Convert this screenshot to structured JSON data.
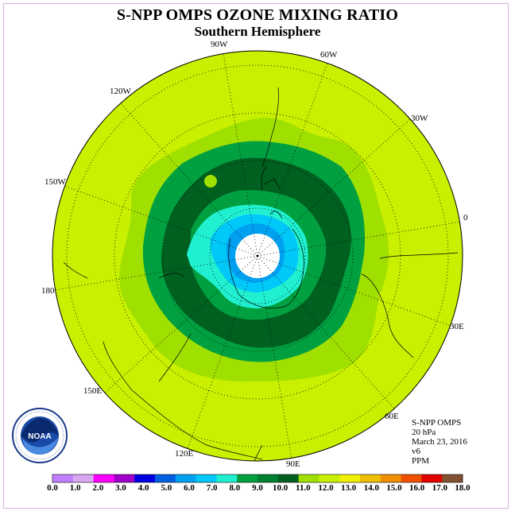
{
  "title": "S-NPP OMPS OZONE MIXING RATIO",
  "subtitle": "Southern Hemisphere",
  "longitude_labels": [
    "90W",
    "60W",
    "30W",
    "0",
    "30E",
    "60E",
    "90E",
    "120E",
    "150E",
    "180",
    "150W",
    "120W"
  ],
  "info": {
    "instrument": "S-NPP OMPS",
    "level": "20 hPa",
    "date": "March 23, 2016",
    "version": "v6",
    "units": "PPM"
  },
  "logo": {
    "text": "NOAA",
    "icon": "noaa-logo-icon",
    "ring_text": "NATIONAL OCEANIC AND ATMOSPHERIC ADMINISTRATION · U.S. DEPARTMENT OF COMMERCE"
  },
  "colorbar": {
    "labels": [
      "0.0",
      "1.0",
      "2.0",
      "3.0",
      "4.0",
      "5.0",
      "6.0",
      "7.0",
      "8.0",
      "9.0",
      "10.0",
      "11.0",
      "12.0",
      "13.0",
      "14.0",
      "15.0",
      "16.0",
      "17.0",
      "18.0"
    ],
    "colors": [
      "#c080ff",
      "#d8a8f0",
      "#ff00ff",
      "#a000c8",
      "#0000e0",
      "#0060e0",
      "#00a0f0",
      "#00c8f8",
      "#20f0d0",
      "#00a040",
      "#008030",
      "#006020",
      "#a0e000",
      "#c8f000",
      "#f0f000",
      "#f0c000",
      "#f09000",
      "#f05000",
      "#e00000",
      "#805030"
    ]
  },
  "colors": {
    "ocean_ring": "#c8f000",
    "band_11": "#a0e000",
    "band_10": "#008030",
    "band_9": "#006020",
    "band_8": "#20f0d0",
    "band_7": "#00c8f8",
    "band_6": "#00a0f0",
    "center": "#ffffff"
  }
}
